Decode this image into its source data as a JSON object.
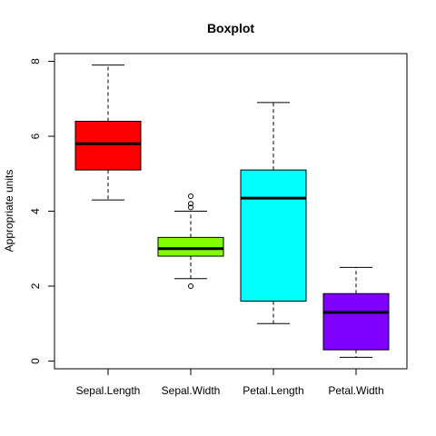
{
  "chart_data": {
    "type": "boxplot",
    "title": "Boxplot",
    "xlabel": "",
    "ylabel": "Appropriate units",
    "ylim": [
      0,
      8
    ],
    "yticks": [
      0,
      2,
      4,
      6,
      8
    ],
    "grid": false,
    "legend": "none",
    "categories": [
      "Sepal.Length",
      "Sepal.Width",
      "Petal.Length",
      "Petal.Width"
    ],
    "boxes": [
      {
        "category": "Sepal.Length",
        "color": "#ff0000",
        "whisker_low": 4.3,
        "q1": 5.1,
        "median": 5.8,
        "q3": 6.4,
        "whisker_high": 7.9,
        "outliers": []
      },
      {
        "category": "Sepal.Width",
        "color": "#80ff00",
        "whisker_low": 2.2,
        "q1": 2.8,
        "median": 3.0,
        "q3": 3.3,
        "whisker_high": 4.0,
        "outliers": [
          2.0,
          4.1,
          4.2,
          4.4
        ]
      },
      {
        "category": "Petal.Length",
        "color": "#00ffff",
        "whisker_low": 1.0,
        "q1": 1.6,
        "median": 4.35,
        "q3": 5.1,
        "whisker_high": 6.9,
        "outliers": []
      },
      {
        "category": "Petal.Width",
        "color": "#8000ff",
        "whisker_low": 0.1,
        "q1": 0.3,
        "median": 1.3,
        "q3": 1.8,
        "whisker_high": 2.5,
        "outliers": []
      }
    ]
  }
}
